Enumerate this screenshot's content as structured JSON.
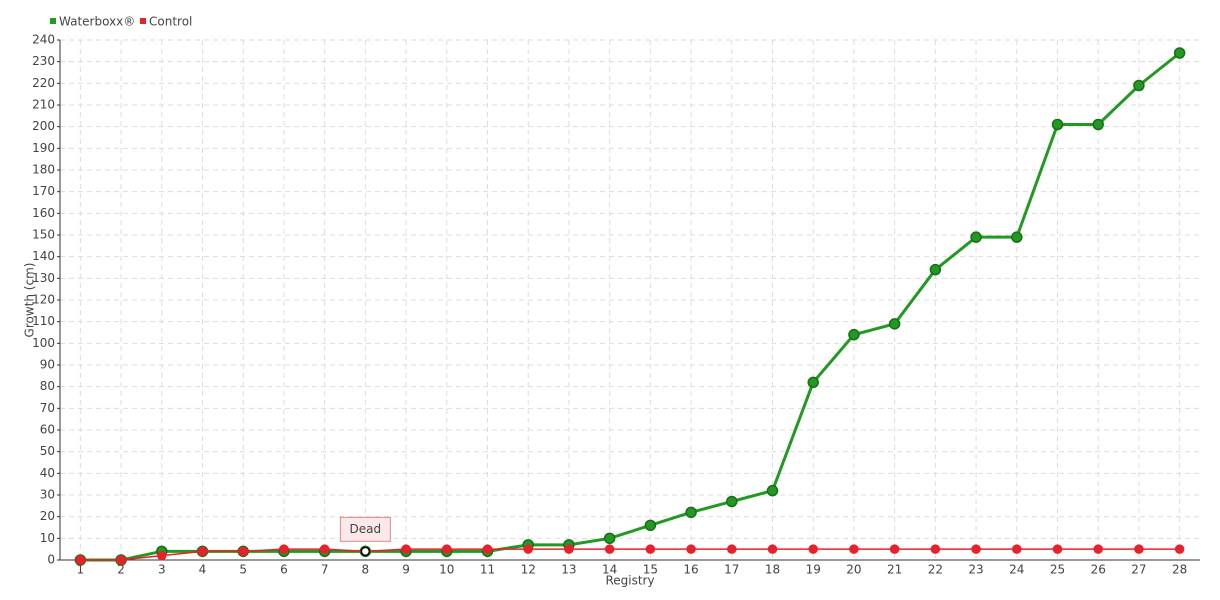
{
  "chart_data": {
    "type": "line",
    "categories": [
      "1",
      "2",
      "3",
      "4",
      "5",
      "6",
      "7",
      "8",
      "9",
      "10",
      "11",
      "12",
      "13",
      "14",
      "15",
      "16",
      "17",
      "18",
      "19",
      "20",
      "21",
      "22",
      "23",
      "24",
      "25",
      "26",
      "27",
      "28"
    ],
    "series": [
      {
        "name": "Waterboxx®",
        "color": "#229922",
        "values": [
          0,
          0,
          4,
          4,
          4,
          4,
          4,
          4,
          4,
          4,
          4,
          7,
          7,
          10,
          16,
          22,
          27,
          32,
          82,
          104,
          109,
          134,
          149,
          149,
          201,
          201,
          219,
          234
        ]
      },
      {
        "name": "Control",
        "color": "#e8212b",
        "values": [
          0,
          0,
          2,
          4,
          4,
          5,
          5,
          4,
          5,
          5,
          5,
          5,
          5,
          5,
          5,
          5,
          5,
          5,
          5,
          5,
          5,
          5,
          5,
          5,
          5,
          5,
          5,
          5
        ]
      }
    ],
    "annotation": "Dead",
    "ylabel": "Growth (cm)",
    "xlabel": "Registry",
    "ylim": [
      0,
      240
    ],
    "yticks": [
      0,
      10,
      20,
      30,
      40,
      50,
      60,
      70,
      80,
      90,
      100,
      110,
      120,
      130,
      140,
      150,
      160,
      170,
      180,
      190,
      200,
      210,
      220,
      230,
      240
    ],
    "grid": true,
    "legend": "top-left"
  }
}
